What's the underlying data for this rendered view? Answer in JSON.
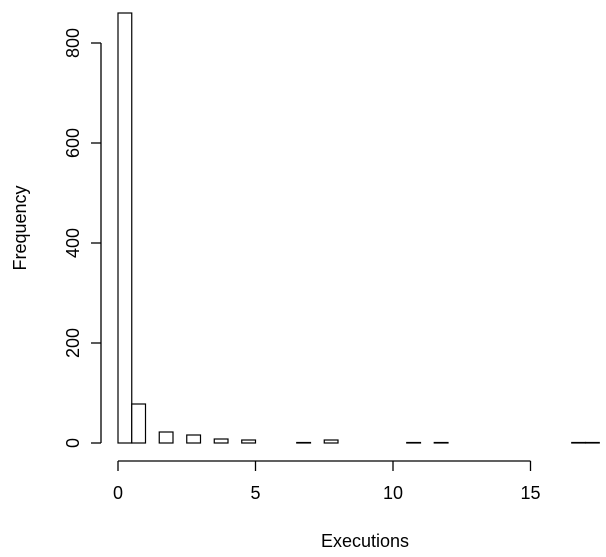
{
  "chart_data": {
    "type": "bar",
    "title": "",
    "xlabel": "Executions",
    "ylabel": "Frequency",
    "x_ticks": [
      0,
      5,
      10,
      15
    ],
    "y_ticks": [
      0,
      200,
      400,
      600,
      800
    ],
    "bin_width": 0.5,
    "xlim": [
      0,
      17.5
    ],
    "ylim": [
      0,
      860
    ],
    "bins": [
      {
        "x0": 0.0,
        "x1": 0.5,
        "count": 860
      },
      {
        "x0": 0.5,
        "x1": 1.0,
        "count": 78
      },
      {
        "x0": 1.0,
        "x1": 1.5,
        "count": 0
      },
      {
        "x0": 1.5,
        "x1": 2.0,
        "count": 22
      },
      {
        "x0": 2.0,
        "x1": 2.5,
        "count": 0
      },
      {
        "x0": 2.5,
        "x1": 3.0,
        "count": 16
      },
      {
        "x0": 3.0,
        "x1": 3.5,
        "count": 0
      },
      {
        "x0": 3.5,
        "x1": 4.0,
        "count": 8
      },
      {
        "x0": 4.0,
        "x1": 4.5,
        "count": 0
      },
      {
        "x0": 4.5,
        "x1": 5.0,
        "count": 6
      },
      {
        "x0": 5.0,
        "x1": 5.5,
        "count": 0
      },
      {
        "x0": 5.5,
        "x1": 6.0,
        "count": 0
      },
      {
        "x0": 6.0,
        "x1": 6.5,
        "count": 0
      },
      {
        "x0": 6.5,
        "x1": 7.0,
        "count": 1
      },
      {
        "x0": 7.0,
        "x1": 7.5,
        "count": 0
      },
      {
        "x0": 7.5,
        "x1": 8.0,
        "count": 6
      },
      {
        "x0": 8.0,
        "x1": 8.5,
        "count": 0
      },
      {
        "x0": 8.5,
        "x1": 9.0,
        "count": 0
      },
      {
        "x0": 9.0,
        "x1": 9.5,
        "count": 0
      },
      {
        "x0": 9.5,
        "x1": 10.0,
        "count": 0
      },
      {
        "x0": 10.0,
        "x1": 10.5,
        "count": 0
      },
      {
        "x0": 10.5,
        "x1": 11.0,
        "count": 1
      },
      {
        "x0": 11.0,
        "x1": 11.5,
        "count": 0
      },
      {
        "x0": 11.5,
        "x1": 12.0,
        "count": 1
      },
      {
        "x0": 12.0,
        "x1": 12.5,
        "count": 0
      },
      {
        "x0": 12.5,
        "x1": 13.0,
        "count": 0
      },
      {
        "x0": 13.0,
        "x1": 13.5,
        "count": 0
      },
      {
        "x0": 13.5,
        "x1": 14.0,
        "count": 0
      },
      {
        "x0": 14.0,
        "x1": 14.5,
        "count": 0
      },
      {
        "x0": 14.5,
        "x1": 15.0,
        "count": 0
      },
      {
        "x0": 15.0,
        "x1": 15.5,
        "count": 0
      },
      {
        "x0": 15.5,
        "x1": 16.0,
        "count": 0
      },
      {
        "x0": 16.0,
        "x1": 16.5,
        "count": 0
      },
      {
        "x0": 16.5,
        "x1": 17.0,
        "count": 1
      },
      {
        "x0": 17.0,
        "x1": 17.5,
        "count": 1
      }
    ],
    "grid": false,
    "legend": "none"
  }
}
